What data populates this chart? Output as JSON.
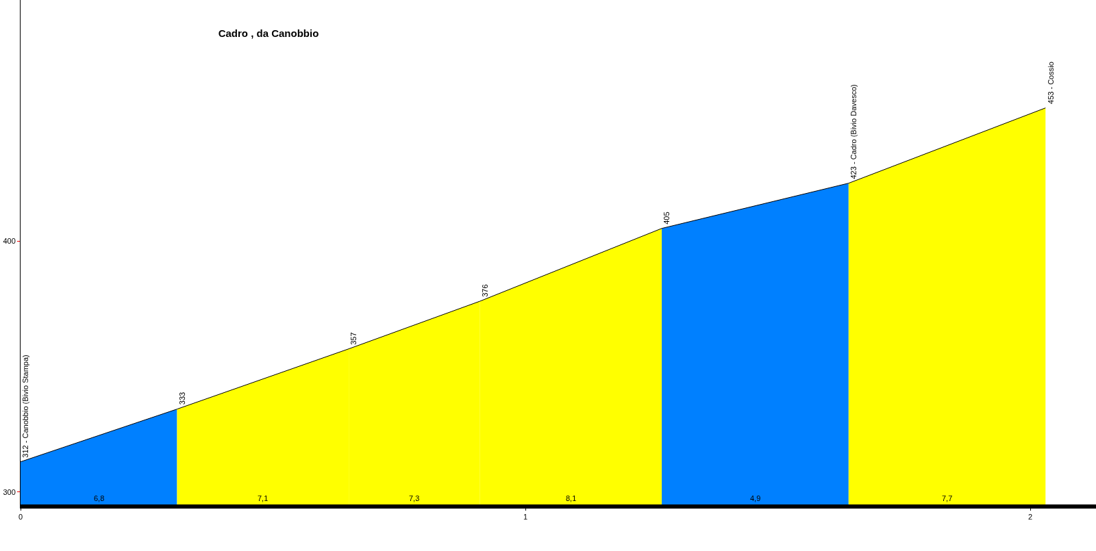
{
  "chart_data": {
    "type": "area",
    "title": "Cadro , da Canobbio",
    "series": [
      {
        "color": "#0080ff",
        "x": [
          0,
          0.31
        ],
        "values": [
          312,
          333
        ],
        "value_labels": [
          "312 - Canobbio (Bivio Stampa)",
          "333"
        ]
      },
      {
        "color": "#ffff00",
        "x": [
          0.31,
          0.65
        ],
        "values": [
          333,
          357
        ],
        "value_labels": [
          null,
          "357"
        ]
      },
      {
        "color": "#ffff00",
        "x": [
          0.65,
          0.91
        ],
        "values": [
          357,
          376
        ],
        "value_labels": [
          null,
          "376"
        ]
      },
      {
        "color": "#ffff00",
        "x": [
          0.91,
          1.27
        ],
        "values": [
          376,
          405
        ],
        "value_labels": [
          null,
          "405"
        ]
      },
      {
        "color": "#0080ff",
        "x": [
          1.27,
          1.64
        ],
        "values": [
          405,
          423
        ],
        "value_labels": [
          null,
          "423 - Cadro (Bivio Davesco)"
        ]
      },
      {
        "color": "#ffff00",
        "x": [
          1.64,
          2.03
        ],
        "values": [
          423,
          453
        ],
        "value_labels": [
          null,
          "453 - Cossio"
        ]
      }
    ],
    "annotations": [
      "6,8",
      "7,1",
      "7,3",
      "8,1",
      "4,9",
      "7,7"
    ],
    "xlim": [
      0,
      2.13
    ],
    "xticks": [
      0,
      1,
      2
    ],
    "ylim": [
      295,
      496
    ],
    "yticks": [
      300,
      400
    ]
  }
}
